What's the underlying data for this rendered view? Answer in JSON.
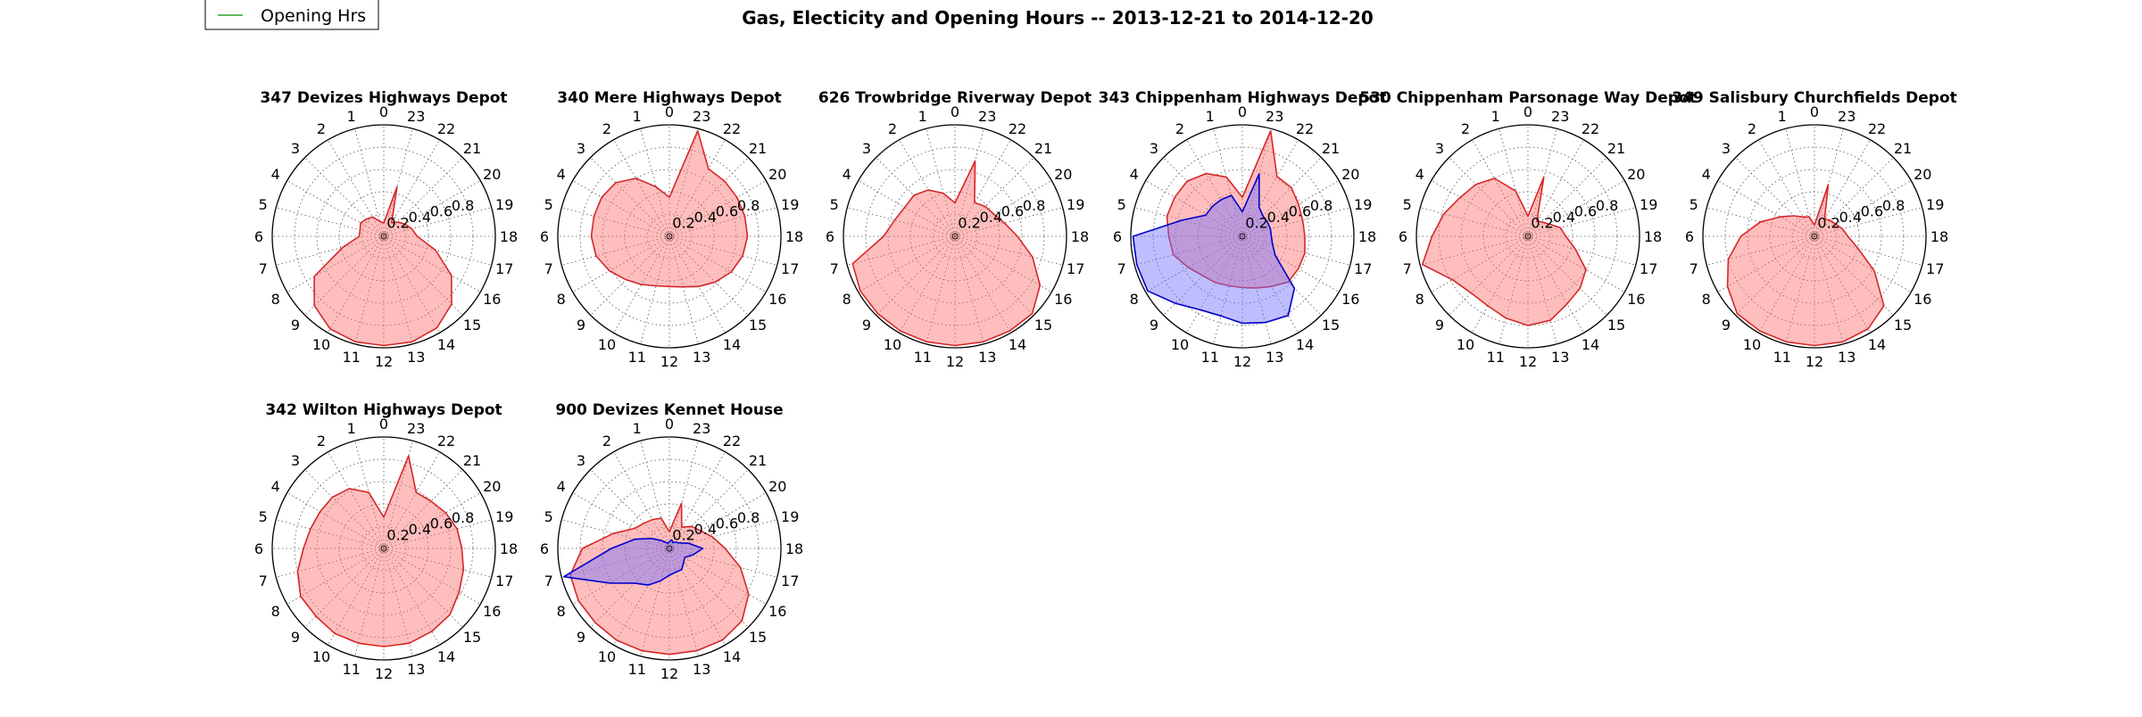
{
  "figure": {
    "title": "Gas, Electicity and Opening Hours -- 2013-12-21 to 2014-12-20",
    "legend": {
      "placement": "top-left",
      "entries": [
        {
          "label": "Opening Hrs",
          "color": "#2ca02c"
        }
      ]
    },
    "colors": {
      "gas": "#d62728",
      "electricity": "#0000cc",
      "grid": "#555555"
    }
  },
  "chart_data": [
    {
      "type": "radar",
      "title": "347 Devizes Highways Depot",
      "theta_labels": [
        "0",
        "1",
        "2",
        "3",
        "4",
        "5",
        "6",
        "7",
        "8",
        "9",
        "10",
        "11",
        "12",
        "13",
        "14",
        "15",
        "16",
        "17",
        "18",
        "19",
        "20",
        "21",
        "22",
        "23"
      ],
      "r_ticks": [
        "0.2",
        "0.4",
        "0.6",
        "0.8"
      ],
      "rlim": [
        0,
        1
      ],
      "grid": true,
      "series": [
        {
          "values": [
            0.12,
            0.14,
            0.2,
            0.22,
            0.24,
            0.22,
            0.22,
            0.38,
            0.72,
            0.88,
            0.96,
            0.98,
            0.98,
            0.98,
            0.95,
            0.86,
            0.7,
            0.48,
            0.3,
            0.26,
            0.22,
            0.18,
            0.14,
            0.46
          ]
        }
      ]
    },
    {
      "type": "radar",
      "title": "340 Mere Highways Depot",
      "theta_labels": [
        "0",
        "1",
        "2",
        "3",
        "4",
        "5",
        "6",
        "7",
        "8",
        "9",
        "10",
        "11",
        "12",
        "13",
        "14",
        "15",
        "16",
        "17",
        "18",
        "19",
        "20",
        "21",
        "22",
        "23"
      ],
      "r_ticks": [
        "0.2",
        "0.4",
        "0.6",
        "0.8"
      ],
      "rlim": [
        0,
        1
      ],
      "grid": true,
      "series": [
        {
          "values": [
            0.35,
            0.46,
            0.6,
            0.68,
            0.7,
            0.7,
            0.7,
            0.68,
            0.62,
            0.55,
            0.5,
            0.46,
            0.45,
            0.47,
            0.52,
            0.58,
            0.64,
            0.68,
            0.7,
            0.7,
            0.7,
            0.7,
            0.7,
            0.98
          ]
        }
      ]
    },
    {
      "type": "radar",
      "title": "626 Trowbridge Riverway Depot",
      "theta_labels": [
        "0",
        "1",
        "2",
        "3",
        "4",
        "5",
        "6",
        "7",
        "8",
        "9",
        "10",
        "11",
        "12",
        "13",
        "14",
        "15",
        "16",
        "17",
        "18",
        "19",
        "20",
        "21",
        "22",
        "23"
      ],
      "r_ticks": [
        "0.2",
        "0.4",
        "0.6",
        "0.8"
      ],
      "rlim": [
        0,
        1
      ],
      "grid": true,
      "series": [
        {
          "values": [
            0.3,
            0.4,
            0.48,
            0.52,
            0.52,
            0.56,
            0.64,
            0.95,
            0.98,
            0.98,
            0.98,
            0.98,
            0.98,
            0.98,
            0.98,
            0.98,
            0.88,
            0.72,
            0.56,
            0.46,
            0.4,
            0.38,
            0.35,
            0.7
          ]
        }
      ]
    },
    {
      "type": "radar",
      "title": "343 Chippenham Highways Depot",
      "theta_labels": [
        "0",
        "1",
        "2",
        "3",
        "4",
        "5",
        "6",
        "7",
        "8",
        "9",
        "10",
        "11",
        "12",
        "13",
        "14",
        "15",
        "16",
        "17",
        "18",
        "19",
        "20",
        "21",
        "22",
        "23"
      ],
      "r_ticks": [
        "0.2",
        "0.4",
        "0.6",
        "0.8"
      ],
      "rlim": [
        0,
        1
      ],
      "grid": true,
      "series": [
        {
          "values": [
            0.35,
            0.55,
            0.65,
            0.7,
            0.7,
            0.7,
            0.66,
            0.64,
            0.56,
            0.5,
            0.48,
            0.46,
            0.46,
            0.48,
            0.52,
            0.58,
            0.58,
            0.58,
            0.56,
            0.56,
            0.58,
            0.62,
            0.62,
            0.98
          ]
        },
        {
          "values": [
            0.22,
            0.38,
            0.38,
            0.38,
            0.38,
            0.56,
            0.98,
            0.98,
            0.98,
            0.85,
            0.76,
            0.74,
            0.78,
            0.8,
            0.82,
            0.66,
            0.34,
            0.28,
            0.26,
            0.26,
            0.26,
            0.26,
            0.3,
            0.58
          ]
        }
      ]
    },
    {
      "type": "radar",
      "title": "530 Chippenham Parsonage Way Depot",
      "theta_labels": [
        "0",
        "1",
        "2",
        "3",
        "4",
        "5",
        "6",
        "7",
        "8",
        "9",
        "10",
        "11",
        "12",
        "13",
        "14",
        "15",
        "16",
        "17",
        "18",
        "19",
        "20",
        "21",
        "22",
        "23"
      ],
      "r_ticks": [
        "0.2",
        "0.4",
        "0.6",
        "0.8"
      ],
      "rlim": [
        0,
        1
      ],
      "grid": true,
      "series": [
        {
          "values": [
            0.18,
            0.42,
            0.6,
            0.66,
            0.7,
            0.78,
            0.86,
            0.98,
            0.78,
            0.72,
            0.72,
            0.76,
            0.8,
            0.78,
            0.7,
            0.66,
            0.6,
            0.44,
            0.34,
            0.3,
            0.22,
            0.18,
            0.16,
            0.55
          ]
        }
      ]
    },
    {
      "type": "radar",
      "title": "349 Salisbury Churchfields Depot",
      "theta_labels": [
        "0",
        "1",
        "2",
        "3",
        "4",
        "5",
        "6",
        "7",
        "8",
        "9",
        "10",
        "11",
        "12",
        "13",
        "14",
        "15",
        "16",
        "17",
        "18",
        "19",
        "20",
        "21",
        "22",
        "23"
      ],
      "r_ticks": [
        "0.2",
        "0.4",
        "0.6",
        "0.8"
      ],
      "rlim": [
        0,
        1
      ],
      "grid": true,
      "series": [
        {
          "values": [
            0.1,
            0.18,
            0.2,
            0.26,
            0.35,
            0.5,
            0.66,
            0.8,
            0.9,
            0.98,
            0.98,
            0.98,
            0.98,
            0.98,
            0.96,
            0.88,
            0.62,
            0.4,
            0.3,
            0.26,
            0.22,
            0.2,
            0.18,
            0.48
          ]
        }
      ]
    },
    {
      "type": "radar",
      "title": "342 Wilton Highways Depot",
      "theta_labels": [
        "0",
        "1",
        "2",
        "3",
        "4",
        "5",
        "6",
        "7",
        "8",
        "9",
        "10",
        "11",
        "12",
        "13",
        "14",
        "15",
        "16",
        "17",
        "18",
        "19",
        "20",
        "21",
        "22",
        "23"
      ],
      "r_ticks": [
        "0.2",
        "0.4",
        "0.6",
        "0.8"
      ],
      "rlim": [
        0,
        1
      ],
      "grid": true,
      "series": [
        {
          "values": [
            0.28,
            0.52,
            0.62,
            0.65,
            0.66,
            0.68,
            0.72,
            0.8,
            0.86,
            0.86,
            0.88,
            0.88,
            0.88,
            0.88,
            0.86,
            0.84,
            0.78,
            0.74,
            0.7,
            0.68,
            0.64,
            0.6,
            0.58,
            0.86
          ]
        }
      ]
    },
    {
      "type": "radar",
      "title": "900 Devizes Kennet House",
      "theta_labels": [
        "0",
        "1",
        "2",
        "3",
        "4",
        "5",
        "6",
        "7",
        "8",
        "9",
        "10",
        "11",
        "12",
        "13",
        "14",
        "15",
        "16",
        "17",
        "18",
        "19",
        "20",
        "21",
        "22",
        "23"
      ],
      "r_ticks": [
        "0.2",
        "0.4",
        "0.6",
        "0.8"
      ],
      "rlim": [
        0,
        1
      ],
      "grid": true,
      "series": [
        {
          "values": [
            0.15,
            0.28,
            0.3,
            0.32,
            0.36,
            0.52,
            0.78,
            0.92,
            0.94,
            0.94,
            0.95,
            0.95,
            0.95,
            0.95,
            0.95,
            0.92,
            0.82,
            0.66,
            0.5,
            0.4,
            0.32,
            0.28,
            0.22,
            0.42
          ]
        },
        {
          "values": [
            0.06,
            0.05,
            0.06,
            0.1,
            0.18,
            0.32,
            0.52,
            0.98,
            0.62,
            0.44,
            0.38,
            0.3,
            0.24,
            0.22,
            0.22,
            0.18,
            0.16,
            0.22,
            0.3,
            0.18,
            0.1,
            0.08,
            0.06,
            0.08
          ]
        }
      ]
    }
  ]
}
